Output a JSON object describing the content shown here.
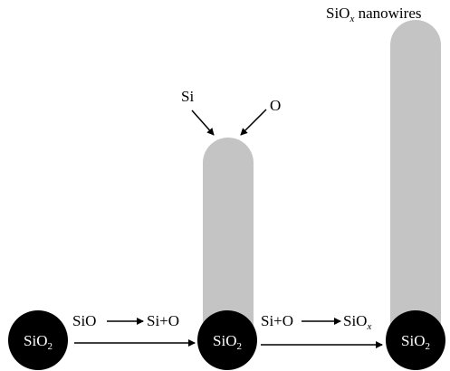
{
  "particles": [
    {
      "label": "SiO",
      "sub": "2"
    },
    {
      "label": "SiO",
      "sub": "2"
    },
    {
      "label": "SiO",
      "sub": "2"
    }
  ],
  "reaction_1": {
    "from": "SiO",
    "to": "Si+O"
  },
  "reaction_2": {
    "from": "Si+O",
    "to": "SiO",
    "to_sub": "x"
  },
  "inputs": [
    "Si",
    "O"
  ],
  "product": {
    "main": "SiO",
    "sub": "x",
    "rest": " nanowires"
  }
}
